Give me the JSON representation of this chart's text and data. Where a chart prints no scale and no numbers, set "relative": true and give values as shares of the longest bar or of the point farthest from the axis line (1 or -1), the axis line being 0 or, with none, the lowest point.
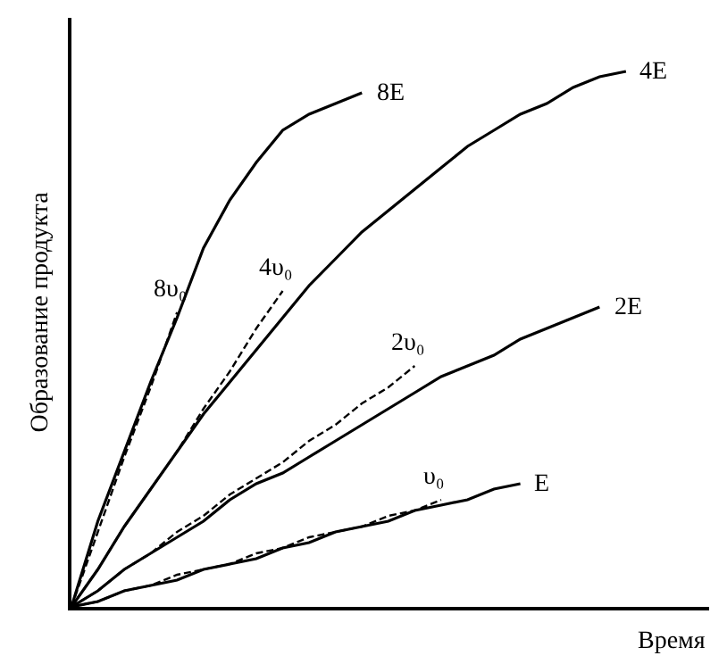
{
  "chart_data": {
    "type": "line",
    "relative": true,
    "xlabel": "Время",
    "ylabel": "Образование продукта",
    "legend": false,
    "grid": false,
    "marker": "none",
    "categories": [
      null,
      null,
      null,
      null,
      null,
      null,
      null,
      null,
      null,
      null,
      null,
      null,
      null,
      null,
      null,
      null,
      null,
      null,
      null,
      null,
      null,
      null
    ],
    "series": [
      {
        "name": "8E",
        "color": "#000000",
        "line_style": "solid",
        "values": [
          0,
          0.16,
          0.29,
          0.42,
          0.54,
          0.67,
          0.76,
          0.83,
          0.89,
          0.92,
          0.94,
          0.96,
          null,
          null,
          null,
          null,
          null,
          null,
          null,
          null,
          null,
          null
        ]
      },
      {
        "name": "4E",
        "color": "#000000",
        "line_style": "solid",
        "values": [
          0,
          0.07,
          0.15,
          0.22,
          0.29,
          0.36,
          0.42,
          0.48,
          0.54,
          0.6,
          0.65,
          0.7,
          0.74,
          0.78,
          0.82,
          0.86,
          0.89,
          0.92,
          0.94,
          0.97,
          0.99,
          1.0
        ]
      },
      {
        "name": "2E",
        "color": "#000000",
        "line_style": "solid",
        "values": [
          0,
          0.03,
          0.07,
          0.1,
          0.13,
          0.16,
          0.2,
          0.23,
          0.25,
          0.28,
          0.31,
          0.34,
          0.37,
          0.4,
          0.43,
          0.45,
          0.47,
          0.5,
          0.52,
          0.54,
          0.56,
          null
        ]
      },
      {
        "name": "E",
        "color": "#000000",
        "line_style": "solid",
        "values": [
          0,
          0.01,
          0.03,
          0.04,
          0.05,
          0.07,
          0.08,
          0.09,
          0.11,
          0.12,
          0.14,
          0.15,
          0.16,
          0.18,
          0.19,
          0.2,
          0.22,
          0.23,
          null,
          null,
          null,
          null
        ]
      },
      {
        "name": "8υ₀",
        "color": "#000000",
        "line_style": "dashed",
        "values": [
          0,
          0.14,
          0.28,
          0.41,
          0.55,
          null,
          null,
          null,
          null,
          null,
          null,
          null,
          null,
          null,
          null,
          null,
          null,
          null,
          null,
          null,
          null,
          null
        ]
      },
      {
        "name": "4υ₀",
        "color": "#000000",
        "line_style": "dashed",
        "values": [
          0,
          0.07,
          0.15,
          0.22,
          0.29,
          0.37,
          0.44,
          0.52,
          0.59,
          null,
          null,
          null,
          null,
          null,
          null,
          null,
          null,
          null,
          null,
          null,
          null,
          null
        ]
      },
      {
        "name": "2υ₀",
        "color": "#000000",
        "line_style": "dashed",
        "values": [
          0,
          0.03,
          0.07,
          0.1,
          0.14,
          0.17,
          0.21,
          0.24,
          0.27,
          0.31,
          0.34,
          0.38,
          0.41,
          0.45,
          null,
          null,
          null,
          null,
          null,
          null,
          null,
          null
        ]
      },
      {
        "name": "υ₀",
        "color": "#000000",
        "line_style": "dashed",
        "values": [
          0,
          0.01,
          0.03,
          0.04,
          0.06,
          0.07,
          0.08,
          0.1,
          0.11,
          0.13,
          0.14,
          0.15,
          0.17,
          0.18,
          0.2,
          null,
          null,
          null,
          null,
          null,
          null,
          null
        ]
      }
    ]
  }
}
